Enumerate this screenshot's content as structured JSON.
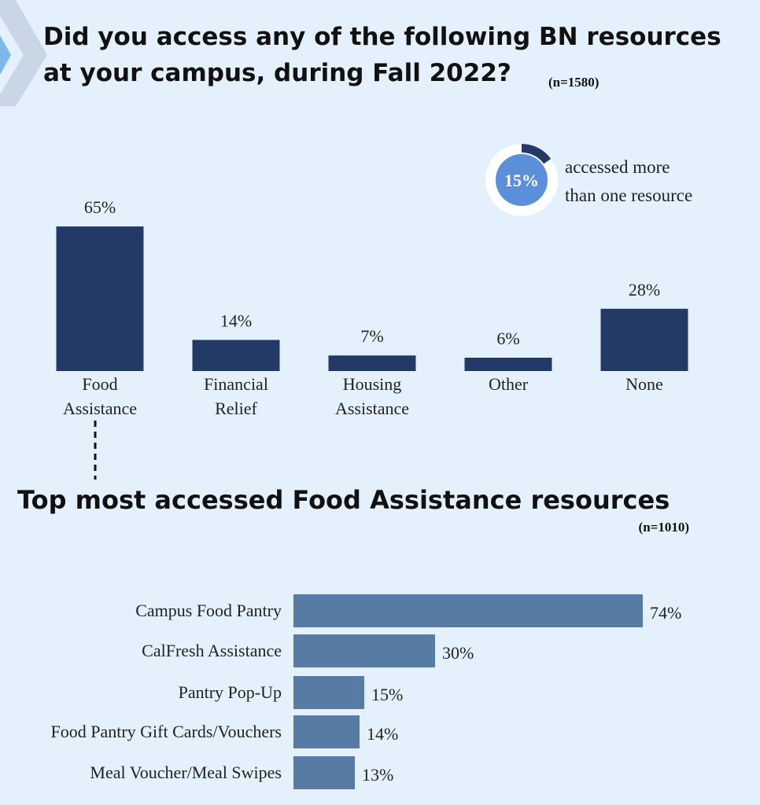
{
  "chart_data": [
    {
      "type": "bar",
      "title_lines": [
        "Did you access any of the following BN resources",
        "at your campus, during Fall 2022?"
      ],
      "subtitle": "(n=1580)",
      "categories": [
        "Food Assistance",
        "Financial Relief",
        "Housing Assistance",
        "Other",
        "None"
      ],
      "values": [
        65,
        14,
        7,
        6,
        28
      ],
      "value_labels": [
        "65%",
        "14%",
        "7%",
        "6%",
        "28%"
      ],
      "color": "#243a66",
      "donut": {
        "value": 15,
        "value_label": "15%",
        "text_lines": [
          "accessed more",
          "than one resource"
        ]
      }
    },
    {
      "type": "hbar",
      "title": "Top most accessed Food Assistance resources",
      "subtitle": "(n=1010)",
      "categories": [
        "Campus Food Pantry",
        "CalFresh Assistance",
        "Pantry Pop-Up",
        "Food Pantry Gift Cards/Vouchers",
        "Meal Voucher/Meal Swipes"
      ],
      "values": [
        74,
        30,
        15,
        14,
        13
      ],
      "value_labels": [
        "74%",
        "30%",
        "15%",
        "14%",
        "13%"
      ],
      "color": "#587ba3"
    }
  ]
}
